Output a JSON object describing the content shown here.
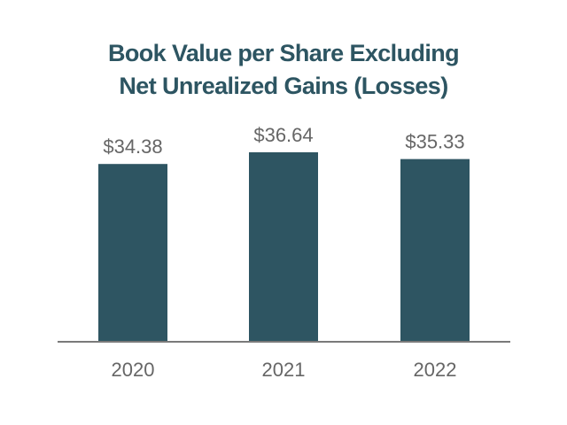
{
  "chart_data": {
    "type": "bar",
    "title_lines": [
      "Book Value per Share Excluding",
      "Net Unrealized Gains (Losses)"
    ],
    "categories": [
      "2020",
      "2021",
      "2022"
    ],
    "values": [
      34.38,
      36.64,
      35.33
    ],
    "value_labels": [
      "$34.38",
      "$36.64",
      "$35.33"
    ],
    "xlabel": "",
    "ylabel": "",
    "ylim": [
      0,
      36.64
    ],
    "grid": false,
    "colors": {
      "bar": "#2e5562",
      "axis": "#7a7a7a"
    }
  }
}
